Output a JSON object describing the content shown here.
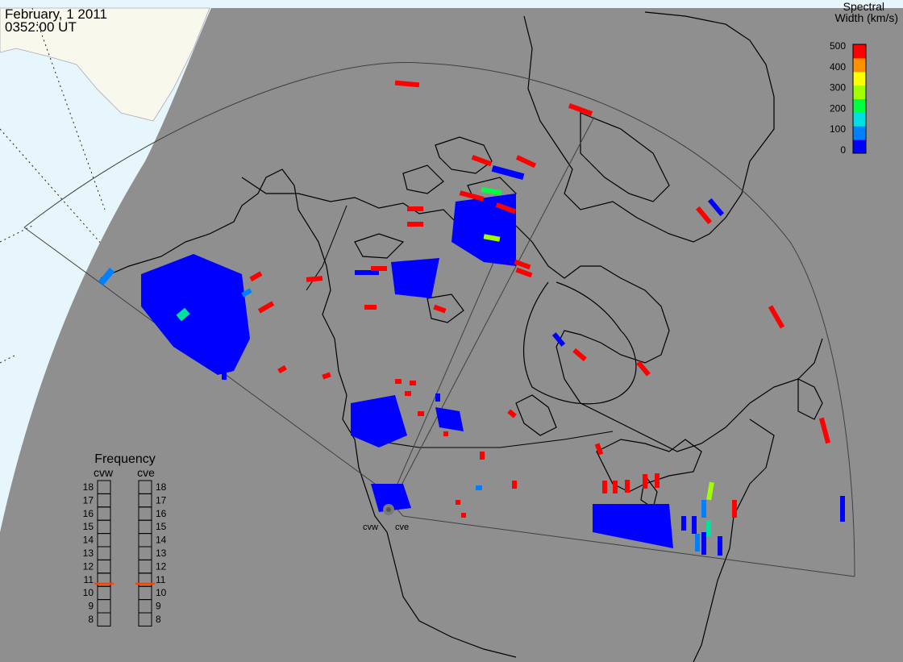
{
  "header": {
    "date": "February, 1 2011",
    "time": "0352:00 UT"
  },
  "colorbar": {
    "title_line1": "Spectral",
    "title_line2": "Width (km/s)",
    "ticks": [
      "500",
      "400",
      "300",
      "200",
      "100",
      "0"
    ],
    "colors": [
      "#0000ff",
      "#0080ff",
      "#00e0e0",
      "#00ff40",
      "#a0ff00",
      "#ffff00",
      "#ff9000",
      "#ff0000"
    ]
  },
  "frequency": {
    "title": "Frequency",
    "radar_left": "cvw",
    "radar_right": "cve",
    "levels": [
      "18",
      "17",
      "16",
      "15",
      "14",
      "13",
      "12",
      "11",
      "10",
      "9",
      "8"
    ],
    "marker_left": 10.7,
    "marker_right": 10.7,
    "marker_color": "#ff4000"
  },
  "radars": {
    "left_label": "cvw",
    "right_label": "cve"
  },
  "map_colors": {
    "ocean_day": "#e6f6fc",
    "land_day": "#f8f8ec",
    "night": "#8f8f8f",
    "coast": "#000000",
    "fov": "#404040"
  }
}
